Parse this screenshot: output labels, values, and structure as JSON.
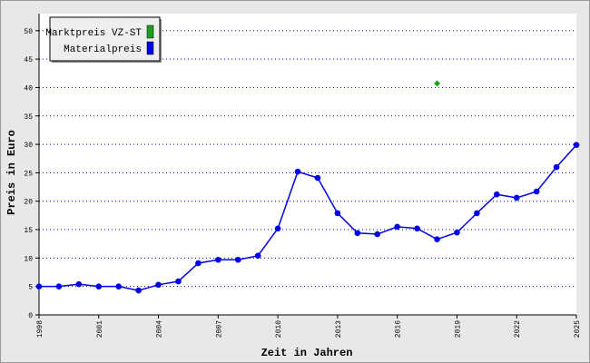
{
  "chart_data": {
    "type": "line",
    "xlabel": "Zeit in Jahren",
    "ylabel": "Preis in Euro",
    "x": [
      1998,
      1999,
      2000,
      2001,
      2002,
      2003,
      2004,
      2005,
      2006,
      2007,
      2008,
      2009,
      2010,
      2011,
      2012,
      2013,
      2014,
      2015,
      2016,
      2017,
      2018,
      2019,
      2020,
      2021,
      2022,
      2023,
      2024,
      2025
    ],
    "series": [
      {
        "name": "Marktpreis VZ-ST",
        "color": "#1e9e1e",
        "marker": "diamond",
        "values": [
          null,
          null,
          null,
          null,
          null,
          null,
          null,
          null,
          null,
          null,
          null,
          null,
          null,
          null,
          null,
          null,
          null,
          null,
          null,
          null,
          40.7,
          null,
          null,
          null,
          null,
          null,
          null,
          null
        ]
      },
      {
        "name": "Materialpreis",
        "color": "#0000e6",
        "marker": "circle",
        "values": [
          5.0,
          5.0,
          5.4,
          5.0,
          5.0,
          4.3,
          5.3,
          5.9,
          9.1,
          9.7,
          9.7,
          10.4,
          15.2,
          25.2,
          24.1,
          17.9,
          14.4,
          14.2,
          15.5,
          15.2,
          13.3,
          14.5,
          17.9,
          21.2,
          20.6,
          21.7,
          26.0,
          29.9
        ]
      }
    ],
    "xlim": [
      1998,
      2025
    ],
    "xticks": [
      1998,
      2001,
      2004,
      2007,
      2010,
      2013,
      2016,
      2019,
      2022,
      2025
    ],
    "ylim": [
      0,
      53
    ],
    "yticks": [
      0,
      5,
      10,
      15,
      20,
      25,
      30,
      35,
      40,
      45,
      50
    ],
    "grid": true,
    "legend": "upper left"
  }
}
